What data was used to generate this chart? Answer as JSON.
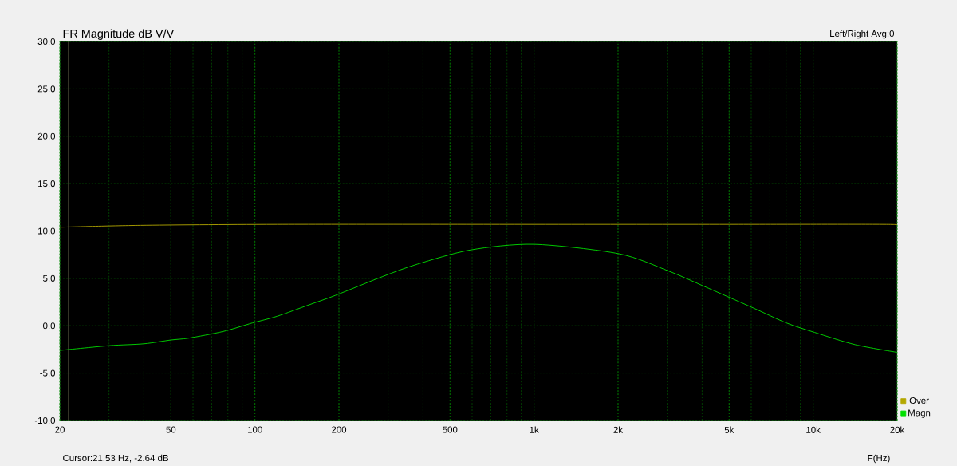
{
  "chart_data": {
    "type": "line",
    "title": "FR Magnitude dB V/V",
    "xlabel": "F(Hz)",
    "annotations": [
      "Left/Right  Avg:0",
      "Cursor:21.53 Hz, -2.64 dB"
    ],
    "log": "x",
    "grid": true,
    "legend": "bottom right",
    "marker": "none",
    "line_style": "solid",
    "xlim": [
      20,
      20000
    ],
    "ylim": [
      -10,
      30
    ],
    "xticks": [
      20,
      50,
      100,
      200,
      500,
      {
        "value": 1000,
        "label": "1k"
      },
      {
        "value": 2000,
        "label": "2k"
      },
      {
        "value": 5000,
        "label": "5k"
      },
      {
        "value": 10000,
        "label": "10k"
      },
      {
        "value": 20000,
        "label": "20k"
      }
    ],
    "yticks": [
      {
        "value": -10,
        "label": "-10.0"
      },
      {
        "value": -5,
        "label": "-5.0"
      },
      {
        "value": 0,
        "label": "0.0"
      },
      {
        "value": 5,
        "label": "5.0"
      },
      {
        "value": 10,
        "label": "10.0"
      },
      {
        "value": 15,
        "label": "15.0"
      },
      {
        "value": 20,
        "label": "20.0"
      },
      {
        "value": 25,
        "label": "25.0"
      },
      {
        "value": 30,
        "label": "30.0"
      }
    ],
    "ref_lines": [
      {
        "axis": "x",
        "value": 21.53,
        "color": "#e8e8b0"
      }
    ],
    "series": [
      {
        "name": "Over",
        "color": "#b4a800",
        "x": [
          20,
          39,
          120,
          1000,
          5000,
          18000,
          20000
        ],
        "values": [
          10.4,
          10.6,
          10.7,
          10.7,
          10.7,
          10.7,
          10.6
        ]
      },
      {
        "name": "Magn",
        "color": "#00e000",
        "x": [
          20,
          30,
          40,
          50,
          58,
          77,
          98,
          120,
          156,
          194,
          287,
          382,
          592,
          1000,
          2014,
          3020,
          4040,
          6080,
          8020,
          10120,
          14180,
          20000
        ],
        "values": [
          -2.6,
          -2.1,
          -1.9,
          -1.5,
          -1.3,
          -0.6,
          0.3,
          1.0,
          2.2,
          3.2,
          5.2,
          6.5,
          8.0,
          8.6,
          7.6,
          5.8,
          4.2,
          1.9,
          0.3,
          -0.7,
          -2.0,
          -2.8
        ]
      }
    ]
  }
}
